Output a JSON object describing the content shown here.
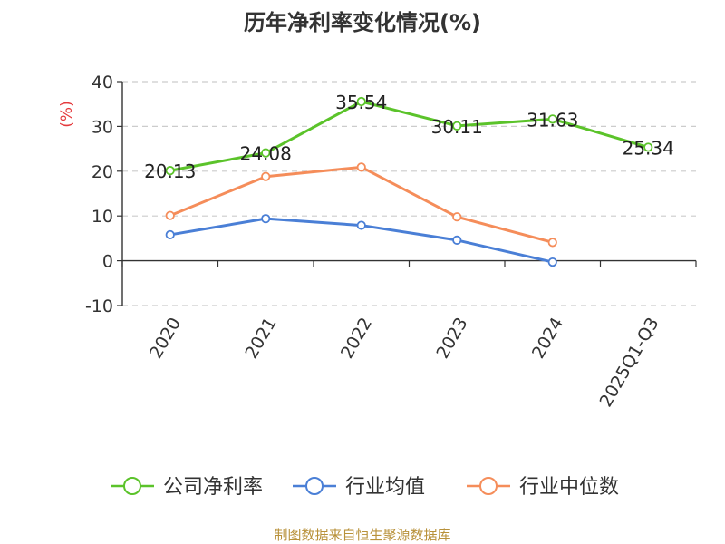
{
  "chart_data": {
    "type": "line",
    "title": "历年净利率变化情况(%)",
    "ylabel": "(%)",
    "ylim": [
      -10,
      40
    ],
    "yticks": [
      -10,
      0,
      10,
      20,
      30,
      40
    ],
    "categories": [
      "2020",
      "2021",
      "2022",
      "2023",
      "2024",
      "2025Q1-Q3"
    ],
    "series": [
      {
        "name": "公司净利率",
        "color": "#5bc32a",
        "values": [
          20.13,
          24.08,
          35.54,
          30.11,
          31.63,
          25.34
        ],
        "labels": [
          "20.13",
          "24.08",
          "35.54",
          "30.11",
          "31.63",
          "25.34"
        ]
      },
      {
        "name": "行业均值",
        "color": "#4a7fd6",
        "values": [
          5.8,
          9.4,
          7.9,
          4.6,
          -0.3,
          null
        ]
      },
      {
        "name": "行业中位数",
        "color": "#f58d5a",
        "values": [
          10.1,
          18.8,
          20.9,
          9.8,
          4.1,
          null
        ]
      }
    ],
    "grid": true,
    "legend_position": "bottom"
  },
  "source": "制图数据来自恒生聚源数据库"
}
